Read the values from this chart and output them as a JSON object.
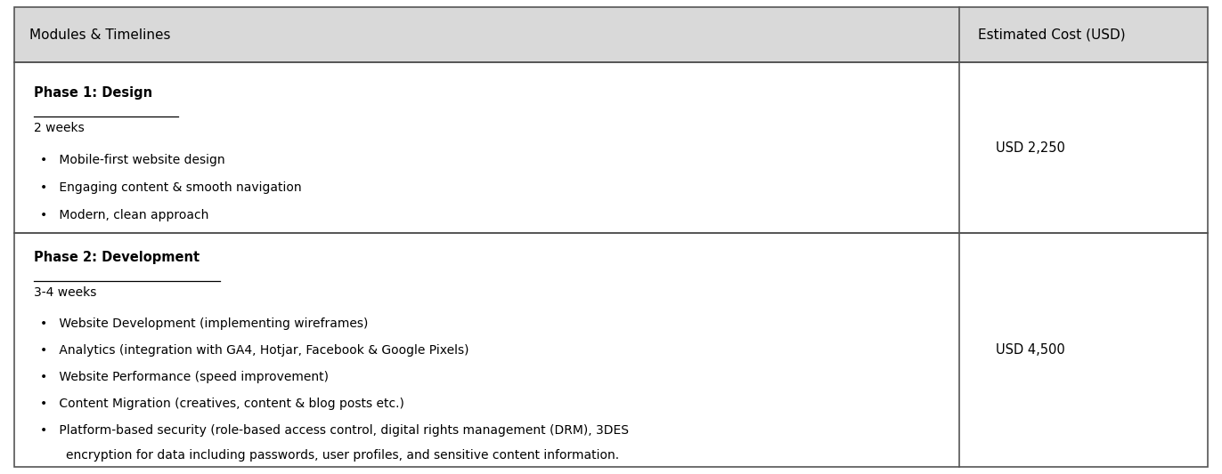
{
  "header_col1": "Modules & Timelines",
  "header_col2": "Estimated Cost (USD)",
  "header_bg": "#d9d9d9",
  "row_bg": "#ffffff",
  "border_color": "#555555",
  "header_font_size": 11,
  "body_font_size": 10,
  "col_split": 0.785,
  "rows": [
    {
      "phase_title": "Phase 1: Design",
      "duration": "2 weeks",
      "bullets": [
        "Mobile-first website design",
        "Engaging content & smooth navigation",
        "Modern, clean approach"
      ],
      "cost": "USD 2,250",
      "bullet_wrap": []
    },
    {
      "phase_title": "Phase 2: Development",
      "duration": "3-4 weeks",
      "bullets": [
        "Website Development (implementing wireframes)",
        "Analytics (integration with GA4, Hotjar, Facebook & Google Pixels)",
        "Website Performance (speed improvement)",
        "Content Migration (creatives, content & blog posts etc.)",
        "Platform-based security (role-based access control, digital rights management (DRM), 3DES"
      ],
      "bullet_last_wrap": "    encryption for data including passwords, user profiles, and sensitive content information.",
      "cost": "USD 4,500",
      "bullet_wrap": [
        4
      ]
    }
  ]
}
